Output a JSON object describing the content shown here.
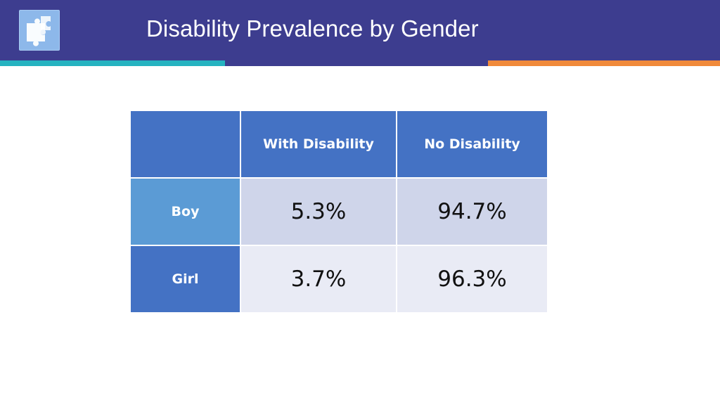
{
  "slide": {
    "title": "Disability Prevalence by Gender",
    "logo_icon": "puzzle-pieces-icon",
    "colors": {
      "header": "#3d3d8f",
      "accent_teal": "#25b3c0",
      "accent_orange": "#f08a3a",
      "table_header": "#4472c4",
      "row_boy_header": "#5b9bd5",
      "cell_dark": "#cfd5ea",
      "cell_light": "#e9ebf5"
    }
  },
  "table": {
    "columns": [
      "",
      "With Disability",
      "No Disability"
    ],
    "rows": [
      {
        "label": "Boy",
        "with_disability": "5.3%",
        "no_disability": "94.7%"
      },
      {
        "label": "Girl",
        "with_disability": "3.7%",
        "no_disability": "96.3%"
      }
    ]
  }
}
